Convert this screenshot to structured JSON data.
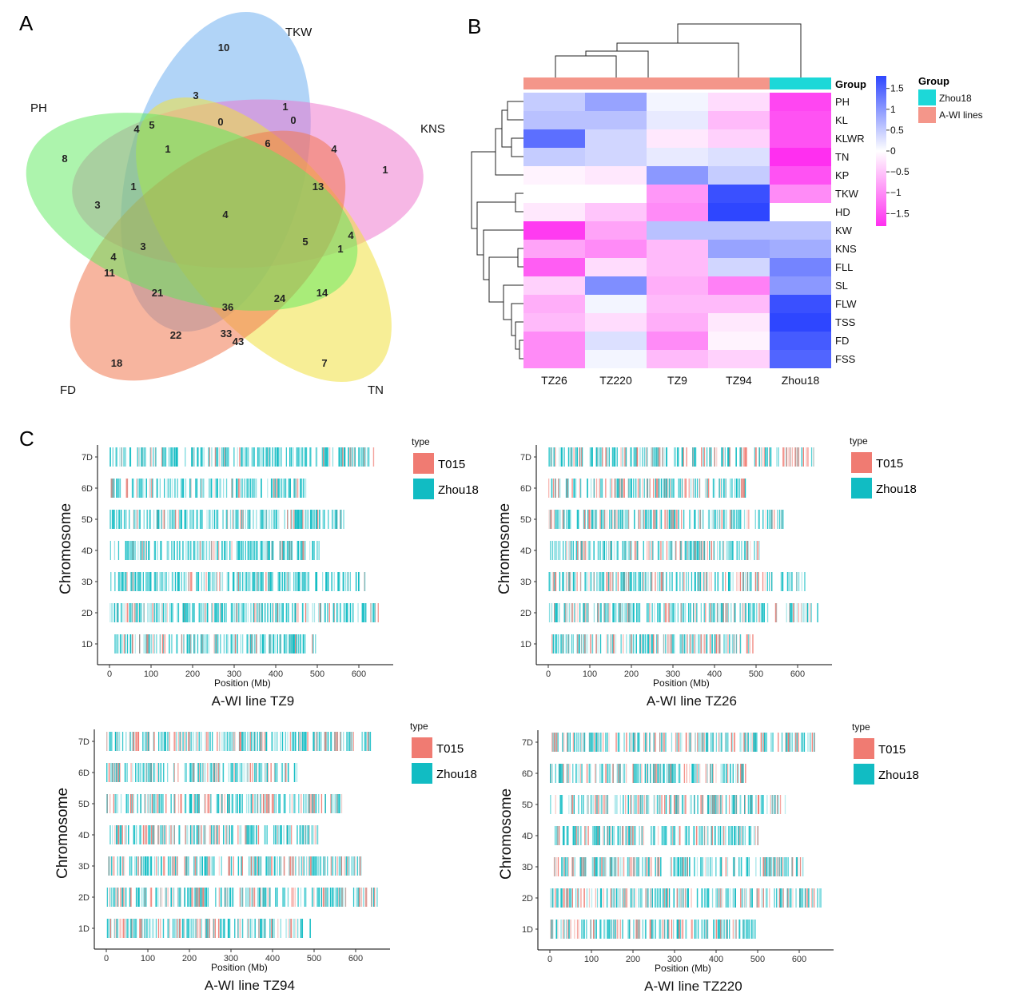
{
  "panels": {
    "A": "A",
    "B": "B",
    "C": "C"
  },
  "venn": {
    "sets": [
      {
        "name": "TKW",
        "color": "#64a9f0"
      },
      {
        "name": "KNS",
        "color": "#ee6fcb"
      },
      {
        "name": "TN",
        "color": "#f0e040"
      },
      {
        "name": "FD",
        "color": "#f07850"
      },
      {
        "name": "PH",
        "color": "#5cea5c"
      }
    ],
    "counts": [
      "10",
      "3",
      "1",
      "0",
      "0",
      "5",
      "4",
      "1",
      "6",
      "4",
      "8",
      "13",
      "1",
      "3",
      "1",
      "4",
      "3",
      "5",
      "4",
      "1",
      "4",
      "11",
      "21",
      "36",
      "24",
      "14",
      "22",
      "33",
      "43",
      "18",
      "7"
    ]
  },
  "heatmap": {
    "group_label": "Group",
    "columns": [
      "TZ26",
      "TZ220",
      "TZ9",
      "TZ94",
      "Zhou18"
    ],
    "column_groups": [
      "A-WI lines",
      "A-WI lines",
      "A-WI lines",
      "A-WI lines",
      "Zhou18"
    ],
    "rows": [
      "PH",
      "KL",
      "KLWR",
      "TN",
      "KP",
      "TKW",
      "HD",
      "KW",
      "KNS",
      "FLL",
      "SL",
      "FLW",
      "TSS",
      "FD",
      "FSS"
    ],
    "values": [
      [
        0.5,
        0.9,
        0.1,
        -0.3,
        -1.6
      ],
      [
        0.6,
        0.6,
        0.2,
        -0.6,
        -1.5
      ],
      [
        1.4,
        0.4,
        -0.2,
        -0.4,
        -1.5
      ],
      [
        0.5,
        0.4,
        0.2,
        0.3,
        -1.8
      ],
      [
        -0.1,
        -0.2,
        1.0,
        0.5,
        -1.5
      ],
      [
        0.0,
        0.0,
        -0.9,
        1.7,
        -1.0
      ],
      [
        -0.2,
        -0.5,
        -1.0,
        1.8,
        0.0
      ],
      [
        -1.7,
        -0.8,
        0.6,
        0.6,
        0.6
      ],
      [
        -0.8,
        -1.0,
        -0.6,
        0.9,
        0.8
      ],
      [
        -1.4,
        -0.3,
        -0.6,
        0.4,
        1.2
      ],
      [
        -0.4,
        1.1,
        -0.7,
        -1.1,
        1.0
      ],
      [
        -0.7,
        0.1,
        -0.6,
        -0.6,
        1.7
      ],
      [
        -0.6,
        -0.3,
        -0.7,
        -0.2,
        1.8
      ],
      [
        -1.0,
        0.3,
        -1.0,
        -0.1,
        1.6
      ],
      [
        -1.0,
        0.1,
        -0.6,
        -0.4,
        1.5
      ]
    ],
    "scale_ticks": [
      "1.5",
      "1",
      "0.5",
      "0",
      "−0.5",
      "−1",
      "−1.5"
    ],
    "scale_values": [
      1.5,
      1,
      0.5,
      0,
      -0.5,
      -1,
      -1.5
    ],
    "legend_title": "Group",
    "legend_items": [
      {
        "label": "Zhou18",
        "color": "#1cd8d8"
      },
      {
        "label": "A-WI lines",
        "color": "#f4968a"
      }
    ]
  },
  "chromosome_plots": {
    "y_label": "Chromosome",
    "x_label": "Position (Mb)",
    "chromosomes": [
      "7D",
      "6D",
      "5D",
      "4D",
      "3D",
      "2D",
      "1D"
    ],
    "chrom_lengths": [
      638,
      473,
      566,
      509,
      616,
      651,
      495
    ],
    "x_ticks": [
      "0",
      "100",
      "200",
      "300",
      "400",
      "500",
      "600"
    ],
    "x_tick_values": [
      0,
      100,
      200,
      300,
      400,
      500,
      600
    ],
    "legend_title": "type",
    "legend": [
      {
        "label": "T015",
        "color": "#f07b72"
      },
      {
        "label": "Zhou18",
        "color": "#11bcc3"
      }
    ],
    "plots": [
      {
        "title": "A-WI line TZ9"
      },
      {
        "title": "A-WI line TZ26"
      },
      {
        "title": "A-WI line TZ94"
      },
      {
        "title": "A-WI line TZ220"
      }
    ]
  }
}
